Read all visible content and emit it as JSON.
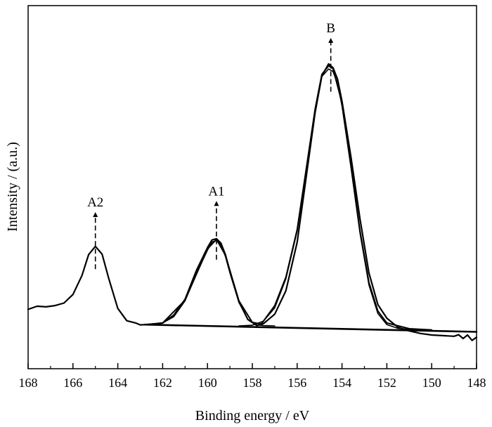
{
  "chart_data": {
    "type": "line",
    "title": "",
    "xlabel": "Binding energy / eV",
    "ylabel": "Intensity / (a.u.)",
    "x_reversed": true,
    "xlim": [
      168,
      148
    ],
    "ylim": [
      0,
      1
    ],
    "x_ticks": [
      168,
      166,
      164,
      162,
      160,
      158,
      156,
      154,
      152,
      150,
      148
    ],
    "y_ticks_shown": false,
    "grid": false,
    "legend": "none",
    "series": [
      {
        "role": "measured-spectrum",
        "x": [
          168.0,
          167.6,
          167.2,
          166.8,
          166.4,
          166.0,
          165.6,
          165.3,
          165.0,
          164.7,
          164.4,
          164.0,
          163.6,
          163.2,
          163.0,
          162.5,
          162.0,
          161.5,
          161.0,
          160.5,
          160.0,
          159.8,
          159.6,
          159.4,
          159.2,
          159.0,
          158.6,
          158.2,
          157.8,
          157.5,
          157.0,
          156.5,
          156.0,
          155.6,
          155.2,
          154.9,
          154.6,
          154.4,
          154.2,
          154.0,
          153.6,
          153.2,
          152.8,
          152.4,
          152.0,
          151.5,
          151.0,
          150.5,
          150.0,
          149.5,
          149.0,
          148.8,
          148.6,
          148.4,
          148.2,
          148.0
        ],
        "y": [
          0.143,
          0.153,
          0.151,
          0.155,
          0.163,
          0.19,
          0.25,
          0.316,
          0.342,
          0.317,
          0.24,
          0.146,
          0.107,
          0.1,
          0.094,
          0.096,
          0.1,
          0.125,
          0.175,
          0.265,
          0.338,
          0.362,
          0.366,
          0.352,
          0.316,
          0.263,
          0.168,
          0.111,
          0.092,
          0.098,
          0.128,
          0.202,
          0.355,
          0.56,
          0.764,
          0.88,
          0.918,
          0.906,
          0.87,
          0.8,
          0.623,
          0.43,
          0.258,
          0.158,
          0.115,
          0.086,
          0.075,
          0.067,
          0.062,
          0.06,
          0.058,
          0.063,
          0.051,
          0.062,
          0.045,
          0.055
        ]
      },
      {
        "role": "baseline",
        "x": [
          162.8,
          148.0
        ],
        "y": [
          0.095,
          0.072
        ]
      },
      {
        "role": "fit-peak-A1",
        "x": [
          162.8,
          162.0,
          161.5,
          161.0,
          160.5,
          160.0,
          159.8,
          159.6,
          159.4,
          159.2,
          159.0,
          158.6,
          158.2,
          157.8,
          157.5,
          157.0
        ],
        "y": [
          0.095,
          0.1,
          0.12,
          0.17,
          0.255,
          0.33,
          0.356,
          0.36,
          0.348,
          0.31,
          0.258,
          0.165,
          0.112,
          0.094,
          0.092,
          0.091
        ]
      },
      {
        "role": "fit-peak-B",
        "x": [
          158.6,
          158.0,
          157.5,
          157.0,
          156.5,
          156.0,
          155.6,
          155.2,
          154.9,
          154.6,
          154.4,
          154.2,
          154.0,
          153.6,
          153.2,
          152.8,
          152.4,
          152.0,
          151.5,
          151.0,
          150.5,
          150.0
        ],
        "y": [
          0.091,
          0.093,
          0.106,
          0.148,
          0.24,
          0.39,
          0.58,
          0.77,
          0.878,
          0.902,
          0.894,
          0.856,
          0.785,
          0.59,
          0.385,
          0.22,
          0.13,
          0.095,
          0.083,
          0.08,
          0.079,
          0.078
        ]
      },
      {
        "role": "fit-envelope",
        "x": [
          162.8,
          162.0,
          161.0,
          160.0,
          159.6,
          159.2,
          158.6,
          158.0,
          157.6,
          157.0,
          156.5,
          156.0,
          155.6,
          155.2,
          154.9,
          154.6,
          154.4,
          154.0,
          153.6,
          153.2,
          152.8,
          152.4,
          152.0,
          151.0,
          150.0
        ],
        "y": [
          0.095,
          0.1,
          0.172,
          0.334,
          0.364,
          0.314,
          0.17,
          0.102,
          0.097,
          0.155,
          0.245,
          0.395,
          0.585,
          0.775,
          0.885,
          0.912,
          0.903,
          0.795,
          0.6,
          0.392,
          0.228,
          0.138,
          0.1,
          0.082,
          0.078
        ]
      }
    ],
    "annotations": [
      {
        "label": "A2",
        "x": 165.0,
        "y_from": 0.27,
        "y_to": 0.45
      },
      {
        "label": "A1",
        "x": 159.6,
        "y_from": 0.3,
        "y_to": 0.485
      },
      {
        "label": "B",
        "x": 154.5,
        "y_from": 0.83,
        "y_to": 1.0
      }
    ]
  }
}
